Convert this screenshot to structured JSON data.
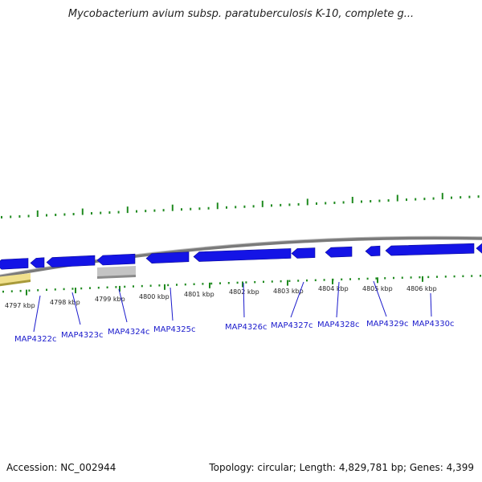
{
  "title": "Mycobacterium avium subsp. paratuberculosis K-10, complete g...",
  "footer": {
    "accession": "Accession: NC_002944",
    "summary": "Topology: circular; Length: 4,829,781 bp; Genes: 4,399"
  },
  "colors": {
    "cds": "#1414e6",
    "trna": "#f0e08c",
    "pseudo": "#c4c4c4",
    "backbone": "#7a7a7a",
    "tick": "#1f8a1f",
    "gene_label": "#1a1acc"
  },
  "scale": {
    "unit": "kbp",
    "major_ticks_kbp": [
      4797,
      4798,
      4799,
      4800,
      4801,
      4802,
      4803,
      4804,
      4805,
      4806
    ]
  },
  "tick_labels": [
    "4797 kbp",
    "4798 kbp",
    "4799 kbp",
    "4800 kbp",
    "4801 kbp",
    "4802 kbp",
    "4803 kbp",
    "4804 kbp",
    "4805 kbp",
    "4806 kbp"
  ],
  "genes": [
    {
      "label": "MAP4322c"
    },
    {
      "label": "MAP4323c"
    },
    {
      "label": "MAP4324c"
    },
    {
      "label": "MAP4325c"
    },
    {
      "label": "MAP4326c"
    },
    {
      "label": "MAP4327c"
    },
    {
      "label": "MAP4328c"
    },
    {
      "label": "MAP4329c"
    },
    {
      "label": "MAP4330c"
    }
  ]
}
